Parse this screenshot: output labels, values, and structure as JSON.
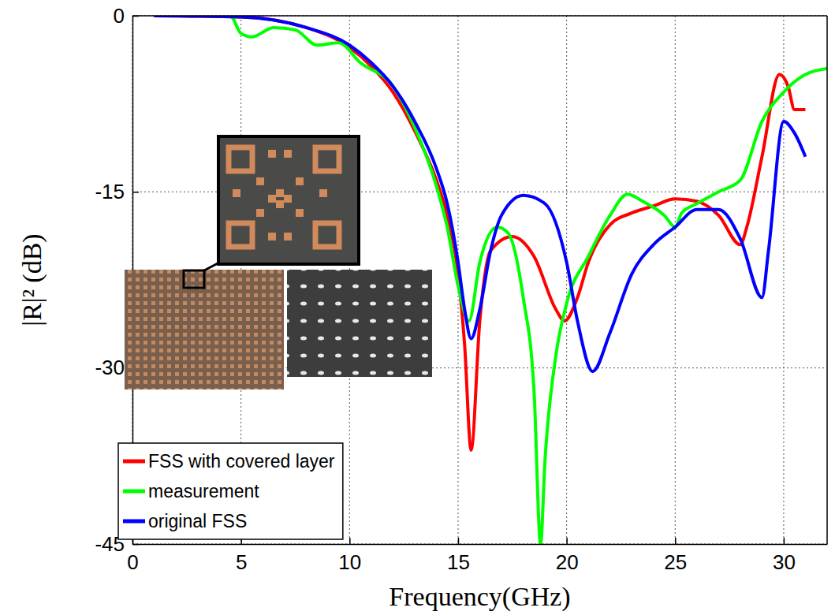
{
  "chart_data": {
    "type": "line",
    "x_label": "Frequency(GHz)",
    "y_label": "|R|² (dB)",
    "xlim": [
      0,
      32
    ],
    "xticks": [
      0,
      5,
      10,
      15,
      20,
      25,
      30
    ],
    "ylim": [
      -45,
      0
    ],
    "yticks": [
      -45,
      -30,
      -15,
      0
    ],
    "grid": true,
    "legend": "lower left",
    "series": [
      {
        "name": "FSS with covered layer",
        "color": "#ff0000",
        "x": [
          1,
          5,
          8,
          10,
          11,
          12,
          13,
          14,
          14.5,
          15,
          15.3,
          15.6,
          16,
          16.5,
          17.5,
          18.5,
          19.5,
          19.9,
          20.5,
          21,
          22,
          23,
          24,
          25,
          26,
          27,
          28,
          28.3,
          29,
          29.8,
          30.2,
          30.5,
          31
        ],
        "values": [
          0,
          -0.1,
          -1,
          -2.7,
          -4.3,
          -6.5,
          -9.8,
          -14,
          -17,
          -22,
          -28,
          -37,
          -26,
          -20,
          -18.8,
          -20.5,
          -25,
          -26,
          -24,
          -21,
          -17.8,
          -16.8,
          -16.2,
          -15.6,
          -15.8,
          -17,
          -19.5,
          -18,
          -12,
          -5,
          -6,
          -8,
          -8
        ]
      },
      {
        "name": "measurement",
        "color": "#00ff00",
        "x": [
          1,
          4.5,
          5,
          5.5,
          6.5,
          7.5,
          8.5,
          9.5,
          10.5,
          12,
          13,
          14,
          14.5,
          15,
          15.5,
          16,
          16.8,
          17.3,
          18,
          18.5,
          18.8,
          19,
          19.5,
          20,
          21,
          22,
          22.8,
          23.5,
          24.5,
          25,
          25.3,
          26,
          27,
          28,
          29,
          30,
          31,
          32
        ],
        "values": [
          0,
          0,
          -1.5,
          -1.8,
          -1,
          -1.2,
          -2.5,
          -2.3,
          -4,
          -6,
          -9.5,
          -14.5,
          -18,
          -23,
          -26,
          -21,
          -18,
          -18.5,
          -24,
          -32,
          -45,
          -38,
          -29,
          -24.5,
          -20.5,
          -17,
          -15.2,
          -15.8,
          -17,
          -18,
          -16.8,
          -16,
          -15,
          -14,
          -9,
          -6.5,
          -5,
          -4.5
        ]
      },
      {
        "name": "original FSS",
        "color": "#0000ff",
        "x": [
          1,
          5,
          8,
          10,
          11,
          12,
          13,
          14,
          14.5,
          15,
          15.3,
          15.6,
          16,
          16.5,
          17,
          18,
          19,
          20,
          20.5,
          21.2,
          22,
          23,
          24,
          25,
          26,
          27,
          28,
          29,
          29.3,
          30,
          30.5,
          31
        ],
        "values": [
          0,
          -0.1,
          -1,
          -2.5,
          -4,
          -6,
          -9,
          -13,
          -16,
          -21,
          -25,
          -27.5,
          -25,
          -20,
          -17,
          -15.3,
          -16,
          -21,
          -26,
          -30.3,
          -27,
          -22,
          -19.5,
          -18,
          -16.5,
          -16.5,
          -19,
          -24,
          -20,
          -9,
          -10,
          -12
        ]
      }
    ]
  }
}
